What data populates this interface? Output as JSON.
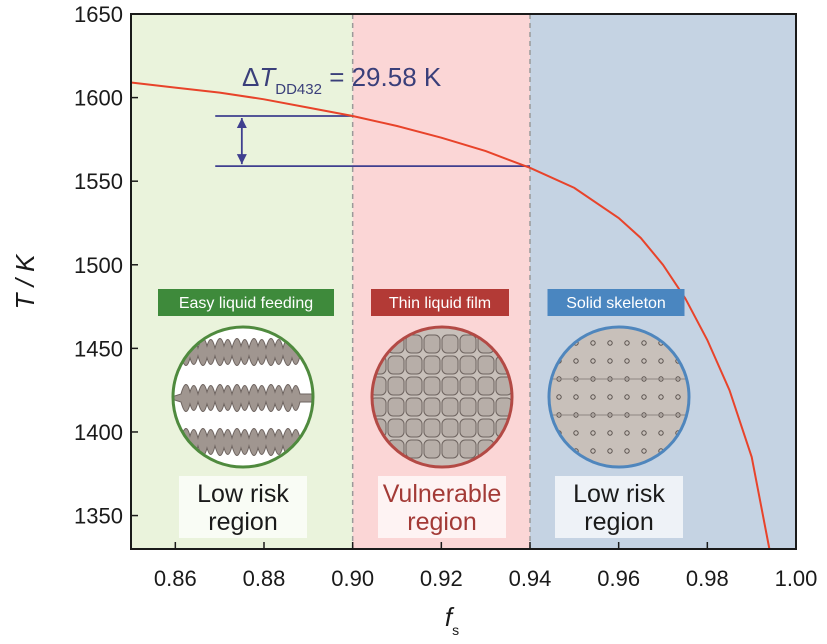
{
  "chart_data": {
    "type": "line",
    "xlabel": "f",
    "xlabel_sub": "s",
    "ylabel_italic": "T",
    "ylabel_rest": " / K",
    "xlim": [
      0.85,
      1.0
    ],
    "ylim": [
      1330,
      1650
    ],
    "x_ticks": [
      0.86,
      0.88,
      0.9,
      0.92,
      0.94,
      0.96,
      0.98,
      1.0
    ],
    "x_tick_labels": [
      "0.86",
      "0.88",
      "0.90",
      "0.92",
      "0.94",
      "0.96",
      "0.98",
      "1.00"
    ],
    "y_ticks": [
      1350,
      1400,
      1450,
      1500,
      1550,
      1600,
      1650
    ],
    "y_tick_labels": [
      "1350",
      "1400",
      "1450",
      "1500",
      "1550",
      "1600",
      "1650"
    ],
    "series": [
      {
        "color": "#e8432a",
        "x": [
          0.85,
          0.86,
          0.87,
          0.88,
          0.89,
          0.9,
          0.91,
          0.92,
          0.93,
          0.94,
          0.95,
          0.96,
          0.965,
          0.97,
          0.975,
          0.98,
          0.985,
          0.99,
          0.994
        ],
        "y": [
          1609,
          1606,
          1603,
          1599,
          1594,
          1589,
          1583,
          1576,
          1568,
          1558,
          1546,
          1528,
          1516,
          1500,
          1480,
          1455,
          1425,
          1385,
          1330
        ]
      }
    ],
    "regions": [
      {
        "x0": 0.85,
        "x1": 0.9,
        "color": "#eaf3dc",
        "line1": "Low risk",
        "line2": "region",
        "text_color": "#1a1a1a",
        "badge": "Easy liquid feeding",
        "badge_color": "#3e8a3b",
        "circle_color": "#4f8a3e"
      },
      {
        "x0": 0.9,
        "x1": 0.94,
        "color": "#fbd6d6",
        "line1": "Vulnerable",
        "line2": "region",
        "text_color": "#a33a36",
        "badge": "Thin liquid film",
        "badge_color": "#b33a36",
        "circle_color": "#b34a45"
      },
      {
        "x0": 0.94,
        "x1": 1.0,
        "color": "#c5d3e3",
        "line1": "Low risk",
        "line2": "region",
        "text_color": "#1a1a1a",
        "badge": "Solid skeleton",
        "badge_color": "#4a86c0",
        "circle_color": "#4f86bd"
      }
    ],
    "annotation": {
      "delta": "Δ",
      "symbol": "T",
      "subscript": "DD432",
      "value": " = 29.58 K",
      "upper": {
        "x": 0.9,
        "y": 1589
      },
      "lower": {
        "x": 0.94,
        "y": 1559
      },
      "arrow_x": 0.875,
      "line_start_x": 0.869
    }
  }
}
